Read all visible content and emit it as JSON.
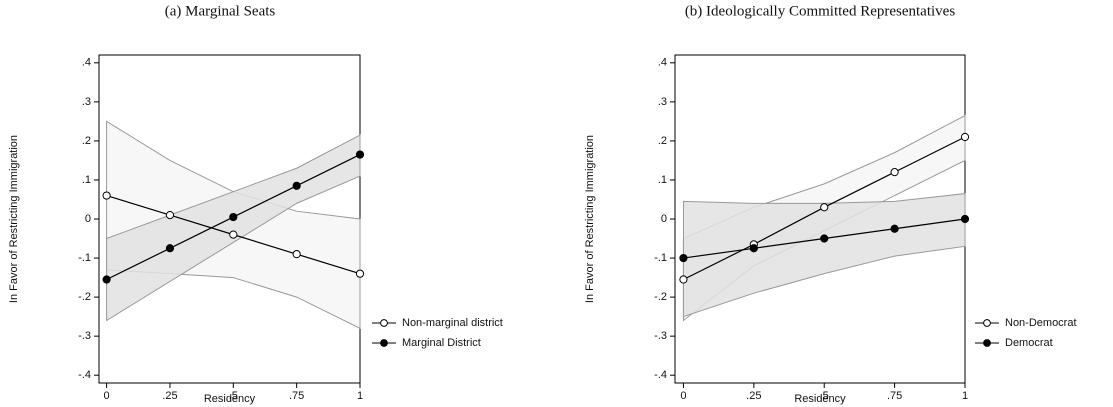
{
  "chart_data": [
    {
      "type": "line",
      "title": "(a) Marginal Seats",
      "xlabel": "Residency",
      "ylabel": "In Favor of Restricting Immigration",
      "x": [
        0,
        0.25,
        0.5,
        0.75,
        1
      ],
      "xlim": [
        -0.03,
        1
      ],
      "ylim": [
        -0.42,
        0.42
      ],
      "xticks": [
        0,
        {
          "value": 0.25,
          "label": ".25"
        },
        {
          "value": 0.5,
          "label": ".5"
        },
        {
          "value": 0.75,
          "label": ".75"
        },
        1
      ],
      "yticks": [
        {
          "value": -0.4,
          "label": "-.4"
        },
        {
          "value": -0.3,
          "label": "-.3"
        },
        {
          "value": -0.2,
          "label": "-.2"
        },
        {
          "value": -0.1,
          "label": "-.1"
        },
        0,
        {
          "value": 0.1,
          "label": ".1"
        },
        {
          "value": 0.2,
          "label": ".2"
        },
        {
          "value": 0.3,
          "label": ".3"
        },
        {
          "value": 0.4,
          "label": ".4"
        }
      ],
      "legend": "right",
      "series": [
        {
          "name": "Non-marginal district",
          "color": "#000000",
          "marker": "open",
          "band_color": "#f6f6f6",
          "values": [
            0.06,
            0.01,
            -0.04,
            -0.09,
            -0.14
          ],
          "lower": [
            -0.13,
            -0.14,
            -0.15,
            -0.2,
            -0.28
          ],
          "upper": [
            0.25,
            0.15,
            0.07,
            0.02,
            0
          ]
        },
        {
          "name": "Marginal District",
          "color": "#000000",
          "marker": "filled",
          "band_color": "#e2e2e2",
          "values": [
            -0.155,
            -0.075,
            0.005,
            0.085,
            0.165
          ],
          "lower": [
            -0.26,
            -0.16,
            -0.06,
            0.04,
            0.11
          ],
          "upper": [
            -0.05,
            0.01,
            0.07,
            0.13,
            0.215
          ]
        }
      ]
    },
    {
      "type": "line",
      "title": "(b) Ideologically Committed Representatives",
      "xlabel": "Residency",
      "ylabel": "In Favor of Restricting Immigration",
      "x": [
        0,
        0.25,
        0.5,
        0.75,
        1
      ],
      "xlim": [
        -0.03,
        1
      ],
      "ylim": [
        -0.42,
        0.42
      ],
      "xticks": [
        0,
        {
          "value": 0.25,
          "label": ".25"
        },
        {
          "value": 0.5,
          "label": ".5"
        },
        {
          "value": 0.75,
          "label": ".75"
        },
        1
      ],
      "yticks": [
        {
          "value": -0.4,
          "label": "-.4"
        },
        {
          "value": -0.3,
          "label": "-.3"
        },
        {
          "value": -0.2,
          "label": "-.2"
        },
        {
          "value": -0.1,
          "label": "-.1"
        },
        0,
        {
          "value": 0.1,
          "label": ".1"
        },
        {
          "value": 0.2,
          "label": ".2"
        },
        {
          "value": 0.3,
          "label": ".3"
        },
        {
          "value": 0.4,
          "label": ".4"
        }
      ],
      "legend": "right",
      "series": [
        {
          "name": "Non-Democrat",
          "color": "#000000",
          "marker": "open",
          "band_color": "#f6f6f6",
          "values": [
            -0.155,
            -0.065,
            0.03,
            0.12,
            0.21
          ],
          "lower": [
            -0.26,
            -0.12,
            -0.03,
            0.06,
            0.15
          ],
          "upper": [
            -0.05,
            0.03,
            0.09,
            0.17,
            0.265
          ]
        },
        {
          "name": "Democrat",
          "color": "#000000",
          "marker": "filled",
          "band_color": "#e2e2e2",
          "values": [
            -0.1,
            -0.075,
            -0.05,
            -0.025,
            0
          ],
          "lower": [
            -0.25,
            -0.19,
            -0.14,
            -0.095,
            -0.07
          ],
          "upper": [
            0.045,
            0.04,
            0.04,
            0.045,
            0.065
          ]
        }
      ]
    }
  ]
}
